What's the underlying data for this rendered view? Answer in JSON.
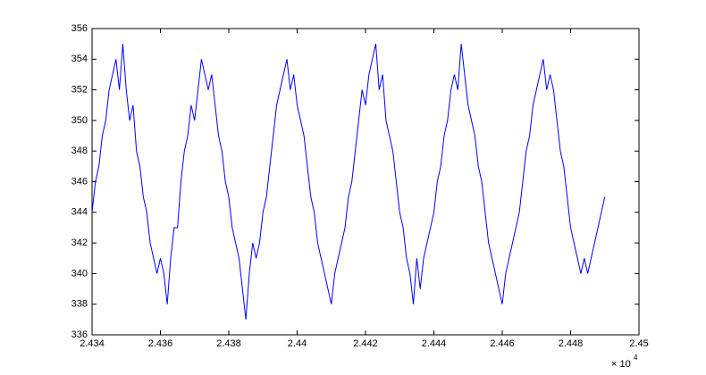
{
  "chart_data": {
    "type": "line",
    "x_multiplier": {
      "base": "× 10",
      "exponent": "4"
    },
    "x": [
      24340,
      24341,
      24342,
      24343,
      24344,
      24345,
      24346,
      24347,
      24348,
      24349,
      24350,
      24351,
      24352,
      24353,
      24354,
      24355,
      24356,
      24357,
      24358,
      24359,
      24360,
      24361,
      24362,
      24363,
      24364,
      24365,
      24366,
      24367,
      24368,
      24369,
      24370,
      24371,
      24372,
      24373,
      24374,
      24375,
      24376,
      24377,
      24378,
      24379,
      24380,
      24381,
      24382,
      24383,
      24384,
      24385,
      24386,
      24387,
      24388,
      24389,
      24390,
      24391,
      24392,
      24393,
      24394,
      24395,
      24396,
      24397,
      24398,
      24399,
      24400,
      24401,
      24402,
      24403,
      24404,
      24405,
      24406,
      24407,
      24408,
      24409,
      24410,
      24411,
      24412,
      24413,
      24414,
      24415,
      24416,
      24417,
      24418,
      24419,
      24420,
      24421,
      24422,
      24423,
      24424,
      24425,
      24426,
      24427,
      24428,
      24429,
      24430,
      24431,
      24432,
      24433,
      24434,
      24435,
      24436,
      24437,
      24438,
      24439,
      24440,
      24441,
      24442,
      24443,
      24444,
      24445,
      24446,
      24447,
      24448,
      24449,
      24450,
      24451,
      24452,
      24453,
      24454,
      24455,
      24456,
      24457,
      24458,
      24459,
      24460,
      24461,
      24462,
      24463,
      24464,
      24465,
      24466,
      24467,
      24468,
      24469,
      24470,
      24471,
      24472,
      24473,
      24474,
      24475,
      24476,
      24477,
      24478,
      24479,
      24480,
      24481,
      24482,
      24483,
      24484,
      24485,
      24486,
      24487,
      24488,
      24489,
      24490
    ],
    "series": [
      {
        "color": "#0000ff",
        "values": [
          344,
          346,
          347,
          349,
          350,
          352,
          353,
          354,
          352,
          355,
          352,
          350,
          351,
          348,
          347,
          345,
          344,
          342,
          341,
          340,
          341,
          340,
          338,
          341,
          343,
          343,
          346,
          348,
          349,
          351,
          350,
          352,
          354,
          353,
          352,
          353,
          351,
          349,
          348,
          346,
          345,
          343,
          342,
          341,
          339,
          337,
          340,
          342,
          341,
          342,
          344,
          345,
          347,
          349,
          351,
          352,
          353,
          354,
          352,
          353,
          351,
          350,
          349,
          347,
          345,
          344,
          342,
          341,
          340,
          339,
          338,
          340,
          341,
          342,
          343,
          345,
          346,
          348,
          350,
          352,
          351,
          353,
          354,
          355,
          352,
          353,
          350,
          349,
          348,
          346,
          344,
          343,
          341,
          340,
          338,
          341,
          339,
          341,
          342,
          343,
          344,
          346,
          347,
          349,
          350,
          352,
          353,
          352,
          355,
          353,
          351,
          350,
          349,
          347,
          346,
          344,
          342,
          341,
          340,
          339,
          338,
          340,
          341,
          342,
          343,
          344,
          346,
          348,
          349,
          351,
          352,
          353,
          354,
          352,
          353,
          352,
          350,
          348,
          347,
          345,
          343,
          342,
          341,
          340,
          341,
          340,
          341,
          342,
          343,
          344,
          345
        ]
      }
    ],
    "xlim": [
      24340,
      24500
    ],
    "xticks": [
      {
        "value": 24340,
        "label": "2.434"
      },
      {
        "value": 24360,
        "label": "2.436"
      },
      {
        "value": 24380,
        "label": "2.438"
      },
      {
        "value": 24400,
        "label": "2.44"
      },
      {
        "value": 24420,
        "label": "2.442"
      },
      {
        "value": 24440,
        "label": "2.444"
      },
      {
        "value": 24460,
        "label": "2.446"
      },
      {
        "value": 24480,
        "label": "2.448"
      },
      {
        "value": 24500,
        "label": "2.45"
      }
    ],
    "ylim": [
      336,
      356
    ],
    "yticks": [
      336,
      338,
      340,
      342,
      344,
      346,
      348,
      350,
      352,
      354,
      356
    ],
    "grid": false
  }
}
